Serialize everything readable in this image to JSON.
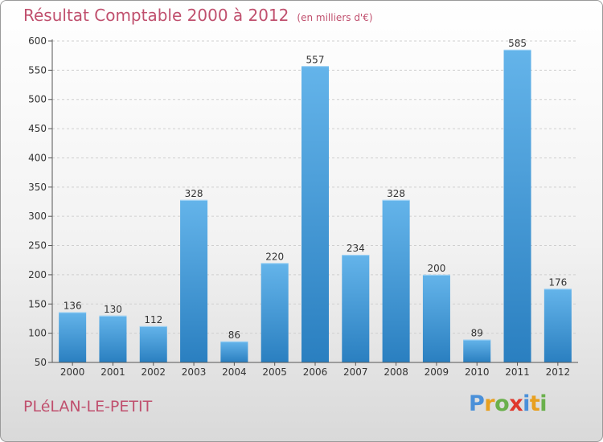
{
  "title": "Résultat Comptable 2000 à 2012",
  "unit_note": "(en milliers d'€)",
  "town": "PLéLAN-LE-PETIT",
  "logo": {
    "letters": [
      "P",
      "r",
      "o",
      "x",
      "i",
      "t",
      "i"
    ],
    "colors": [
      "#4a90d9",
      "#e8a020",
      "#6ab04c",
      "#e0382c",
      "#4a90d9",
      "#e8a020",
      "#6ab04c"
    ]
  },
  "colors": {
    "title": "#c0506e",
    "bar_light": "#64b4ea",
    "bar_dark": "#2a7fc0",
    "grid": "#cfcfcf",
    "axis_text": "#333333"
  },
  "chart_data": {
    "type": "bar",
    "categories": [
      "2000",
      "2001",
      "2002",
      "2003",
      "2004",
      "2005",
      "2006",
      "2007",
      "2008",
      "2009",
      "2010",
      "2011",
      "2012"
    ],
    "values": [
      136,
      130,
      112,
      328,
      86,
      220,
      557,
      234,
      328,
      200,
      89,
      585,
      176
    ],
    "ylim": [
      50,
      600
    ],
    "yticks": [
      50,
      100,
      150,
      200,
      250,
      300,
      350,
      400,
      450,
      500,
      550,
      600
    ],
    "grid": "horizontal dashed",
    "legend": "none"
  }
}
